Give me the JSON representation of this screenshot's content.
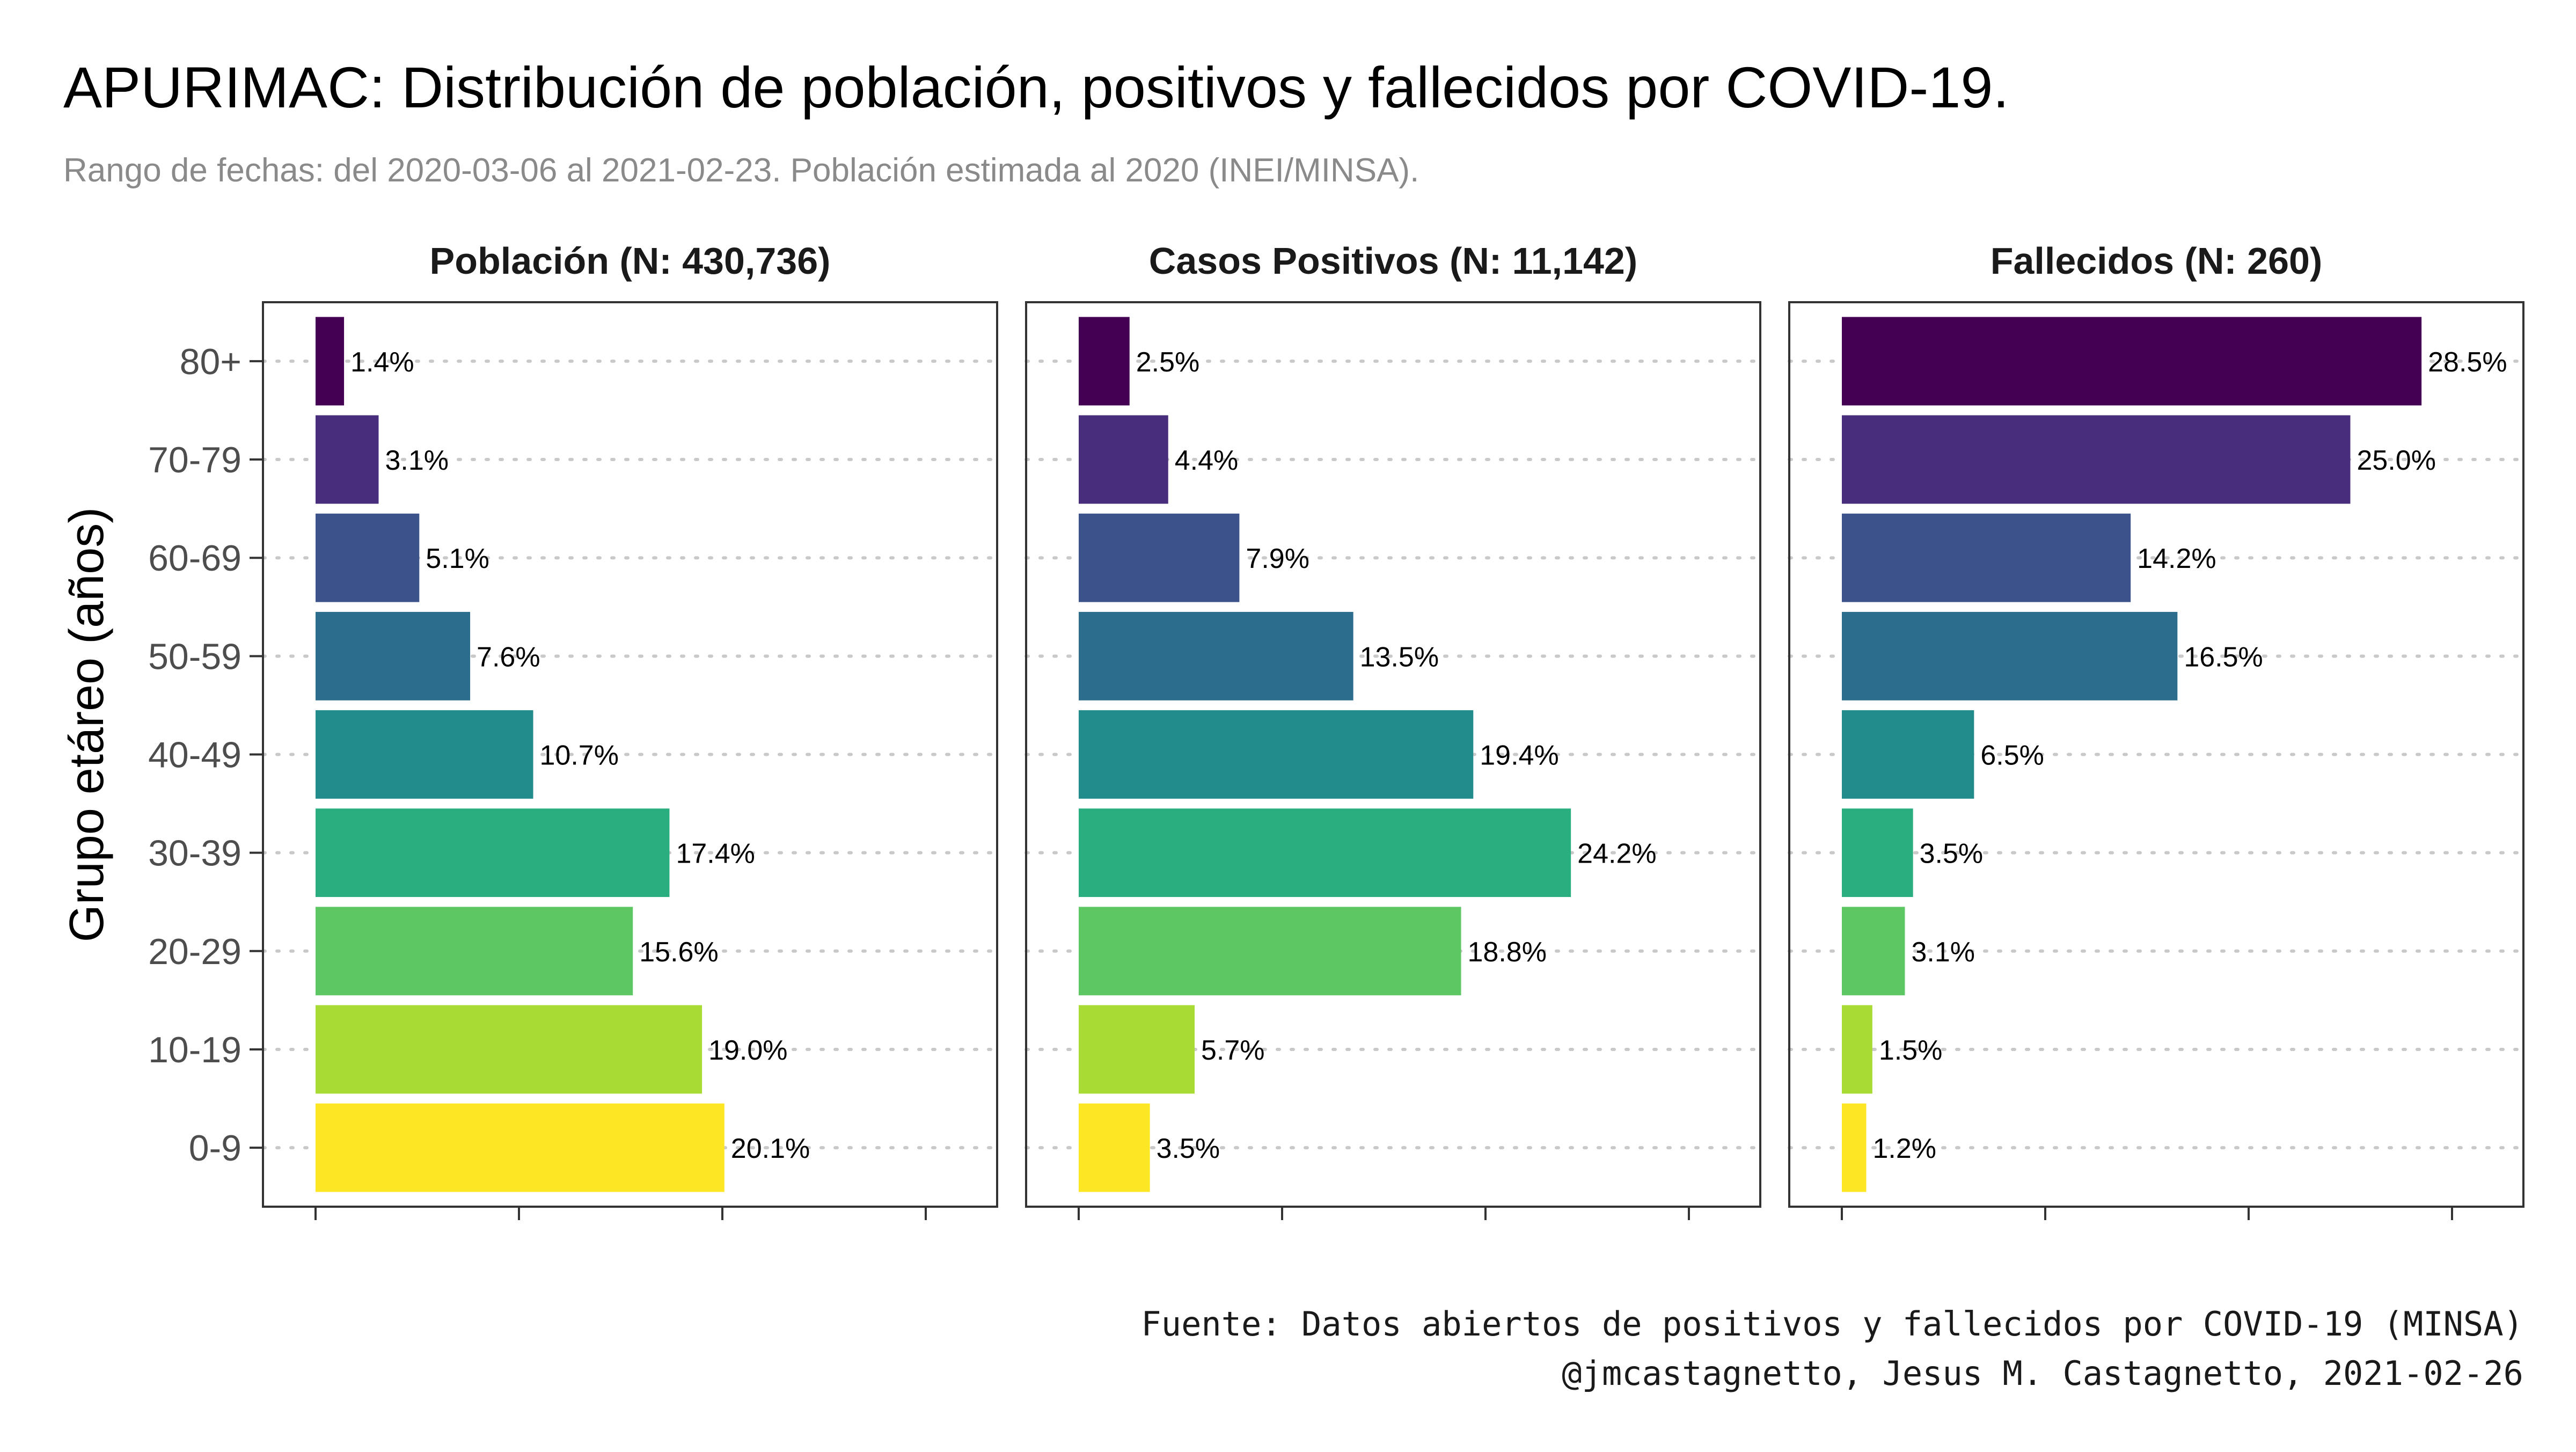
{
  "title": "APURIMAC: Distribución de población, positivos y fallecidos por COVID-19.",
  "subtitle": "Rango de fechas: del 2020-03-06 al 2021-02-23. Población estimada al 2020 (INEI/MINSA).",
  "caption": {
    "line1": "Fuente: Datos abiertos de positivos y fallecidos por COVID-19 (MINSA)",
    "line2": "@jmcastagnetto, Jesus M. Castagnetto, 2021-02-26"
  },
  "colors": {
    "0-9": "#fde725",
    "10-19": "#a8db34",
    "20-29": "#5dc863",
    "30-39": "#2aae80",
    "40-49": "#228c8d",
    "50-59": "#2c6d8e",
    "60-69": "#3b528b",
    "70-79": "#472d7b",
    "80+": "#440154"
  },
  "chart_data": {
    "type": "bar",
    "orientation": "horizontal",
    "ylabel": "Grupo etáreo (años)",
    "categories": [
      "0-9",
      "10-19",
      "20-29",
      "30-39",
      "40-49",
      "50-59",
      "60-69",
      "70-79",
      "80+"
    ],
    "grid": "dotted horizontal",
    "legend": "none",
    "panels": [
      {
        "title": "Población (N: 430,736)",
        "values": [
          20.1,
          19.0,
          15.6,
          17.4,
          10.7,
          7.6,
          5.1,
          3.1,
          1.4
        ],
        "xlim": [
          0,
          30
        ]
      },
      {
        "title": "Casos Positivos (N: 11,142)",
        "values": [
          3.5,
          5.7,
          18.8,
          24.2,
          19.4,
          13.5,
          7.9,
          4.4,
          2.5
        ],
        "xlim": [
          0,
          30
        ]
      },
      {
        "title": "Fallecidos (N: 260)",
        "values": [
          1.2,
          1.5,
          3.1,
          3.5,
          6.5,
          16.5,
          14.2,
          25.0,
          28.5
        ],
        "xlim": [
          0,
          30
        ]
      }
    ]
  }
}
